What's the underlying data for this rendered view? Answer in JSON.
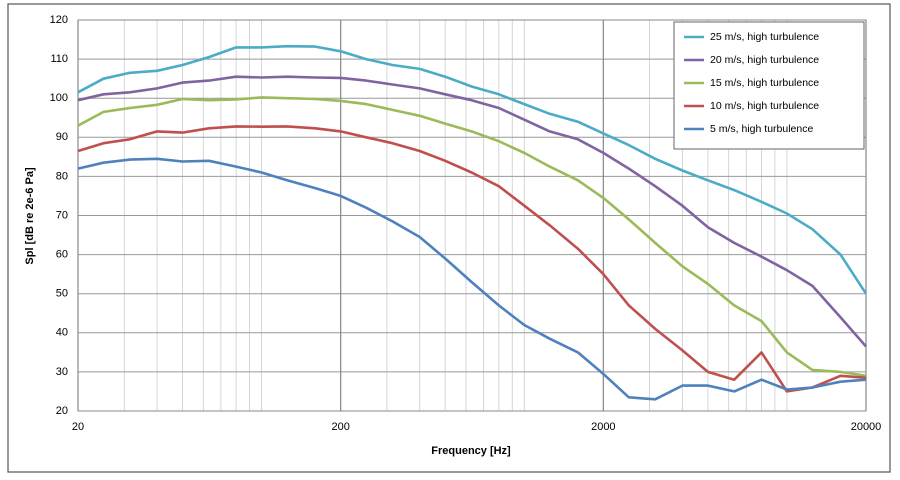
{
  "chart_data": {
    "type": "line",
    "x_label": "Frequency [Hz]",
    "y_label": "Spl [dB re 2e-6 Pa]",
    "x": [
      20,
      25,
      31.5,
      40,
      50,
      63,
      80,
      100,
      125,
      160,
      200,
      250,
      315,
      400,
      500,
      630,
      800,
      1000,
      1250,
      1600,
      2000,
      2500,
      3150,
      4000,
      5000,
      6300,
      8000,
      10000,
      12500,
      16000,
      20000
    ],
    "x_log": true,
    "xlim": [
      20,
      20000
    ],
    "xticks": [
      20,
      200,
      2000,
      20000
    ],
    "ylim": [
      20,
      120
    ],
    "yticks": [
      20,
      30,
      40,
      50,
      60,
      70,
      80,
      90,
      100,
      110,
      120
    ],
    "grid": true,
    "minor_grid": true,
    "legend": "top-right",
    "series": [
      {
        "name": "25 m/s, high turbulence",
        "color": "#4bacc6",
        "values": [
          101.5,
          105,
          106.5,
          107,
          108.5,
          110.5,
          113,
          113,
          113.3,
          113.2,
          112,
          110,
          108.5,
          107.5,
          105.5,
          103,
          101,
          98.5,
          96,
          94,
          91,
          88,
          84.5,
          81.5,
          79,
          76.5,
          73.5,
          70.5,
          66.5,
          60,
          50
        ]
      },
      {
        "name": "20 m/s, high turbulence",
        "color": "#8064a2",
        "values": [
          99.5,
          101,
          101.5,
          102.5,
          104,
          104.5,
          105.5,
          105.3,
          105.5,
          105.3,
          105.2,
          104.5,
          103.5,
          102.5,
          101,
          99.5,
          97.5,
          94.5,
          91.5,
          89.5,
          86,
          82,
          77.5,
          72.5,
          67,
          63,
          59.5,
          56,
          52,
          44,
          36.5
        ]
      },
      {
        "name": "15 m/s, high turbulence",
        "color": "#9bbb59",
        "values": [
          93,
          96.5,
          97.5,
          98.3,
          99.8,
          99.5,
          99.7,
          100.2,
          100,
          99.8,
          99.3,
          98.5,
          97,
          95.5,
          93.5,
          91.5,
          89,
          86,
          82.5,
          79,
          74.5,
          69,
          63,
          57,
          52.5,
          47,
          43,
          35,
          30.5,
          30,
          29
        ]
      },
      {
        "name": "10 m/s, high turbulence",
        "color": "#c0504d",
        "values": [
          86.5,
          88.5,
          89.5,
          91.5,
          91.2,
          92.3,
          92.8,
          92.7,
          92.8,
          92.3,
          91.5,
          90,
          88.5,
          86.5,
          84,
          81,
          77.5,
          72.5,
          67.5,
          61.5,
          55,
          47,
          41,
          35.5,
          30,
          28,
          35,
          25,
          26,
          29,
          28.5
        ]
      },
      {
        "name": "5 m/s, high turbulence",
        "color": "#4f81bd",
        "values": [
          82,
          83.5,
          84.3,
          84.5,
          83.8,
          84,
          82.5,
          81,
          79,
          77,
          75,
          72,
          68.5,
          64.5,
          59,
          53,
          47,
          42,
          38.5,
          35,
          29.5,
          23.5,
          23,
          26.5,
          26.5,
          25,
          28,
          25.5,
          26,
          27.5,
          28
        ]
      }
    ]
  }
}
